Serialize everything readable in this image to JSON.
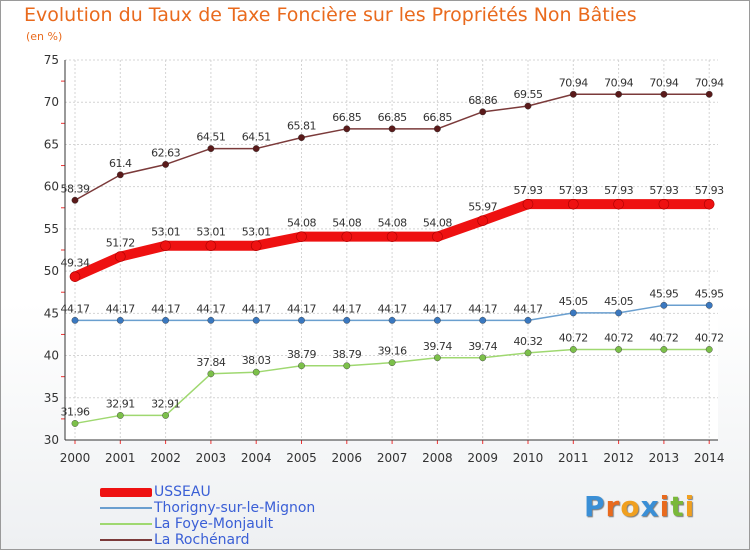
{
  "title": "Evolution du Taux de Taxe Foncière sur les Propriétés Non Bâties",
  "subtitle": "(en %)",
  "chart_data": {
    "type": "line",
    "title": "Evolution du Taux de Taxe Foncière sur les Propriétés Non Bâties",
    "ylabel": "(en %)",
    "xlabel": "",
    "x": [
      "2000",
      "2001",
      "2002",
      "2003",
      "2004",
      "2005",
      "2006",
      "2007",
      "2008",
      "2009",
      "2010",
      "2011",
      "2012",
      "2013",
      "2014"
    ],
    "yticks": [
      30,
      35,
      40,
      45,
      50,
      55,
      60,
      65,
      70,
      75
    ],
    "ylim": [
      30,
      75
    ],
    "series": [
      {
        "name": "USSEAU",
        "color": "#ee1111",
        "values": [
          49.34,
          51.72,
          53.01,
          53.01,
          53.01,
          54.08,
          54.08,
          54.08,
          54.08,
          55.97,
          57.93,
          57.93,
          57.93,
          57.93,
          57.93
        ]
      },
      {
        "name": "Thorigny-sur-le-Mignon",
        "color": "#6a9fcf",
        "values": [
          44.17,
          44.17,
          44.17,
          44.17,
          44.17,
          44.17,
          44.17,
          44.17,
          44.17,
          44.17,
          44.17,
          45.05,
          45.05,
          45.95,
          45.95
        ]
      },
      {
        "name": "La Foye-Monjault",
        "color": "#9fd870",
        "values": [
          31.96,
          32.91,
          32.91,
          37.84,
          38.03,
          38.79,
          38.79,
          39.16,
          39.74,
          39.74,
          40.32,
          40.72,
          40.72,
          40.72,
          40.72
        ]
      },
      {
        "name": "La Rochénard",
        "color": "#7b3a3a",
        "values": [
          58.39,
          61.4,
          62.63,
          64.51,
          64.51,
          65.81,
          66.85,
          66.85,
          66.85,
          68.86,
          69.55,
          70.94,
          70.94,
          70.94,
          70.94
        ]
      }
    ],
    "labels": [
      [
        "49.34",
        "51.72",
        "53.01",
        "53.01",
        "53.01",
        "54.08",
        "54.08",
        "54.08",
        "54.08",
        "55.97",
        "57.93",
        "57.93",
        "57.93",
        "57.93",
        "57.93"
      ],
      [
        "44.17",
        "44.17",
        "44.17",
        "44.17",
        "44.17",
        "44.17",
        "44.17",
        "44.17",
        "44.17",
        "44.17",
        "44.17",
        "45.05",
        "45.05",
        "45.95",
        "45.95"
      ],
      [
        "31.96",
        "32.91",
        "32.91",
        "37.84",
        "38.03",
        "38.79",
        "38.79",
        "39.16",
        "39.74",
        "39.74",
        "40.32",
        "40.72",
        "40.72",
        "40.72",
        "40.72"
      ],
      [
        "58.39",
        "61.4",
        "62.63",
        "64.51",
        "64.51",
        "65.81",
        "66.85",
        "66.85",
        "66.85",
        "68.86",
        "69.55",
        "70.94",
        "70.94",
        "70.94",
        "70.94"
      ]
    ],
    "grid": true,
    "legend_position": "bottom-left"
  },
  "legend": [
    {
      "label": "USSEAU"
    },
    {
      "label": "Thorigny-sur-le-Mignon"
    },
    {
      "label": "La Foye-Monjault"
    },
    {
      "label": "La Rochénard"
    }
  ],
  "logo": {
    "text": "Proxiti",
    "letters": [
      "P",
      "r",
      "o",
      "x",
      "i",
      "t",
      "i"
    ],
    "colors": [
      "#3a8fd6",
      "#e96a1d",
      "#f0a020",
      "#3a8fd6",
      "#e96a1d",
      "#7ab83a",
      "#f0a020"
    ]
  }
}
